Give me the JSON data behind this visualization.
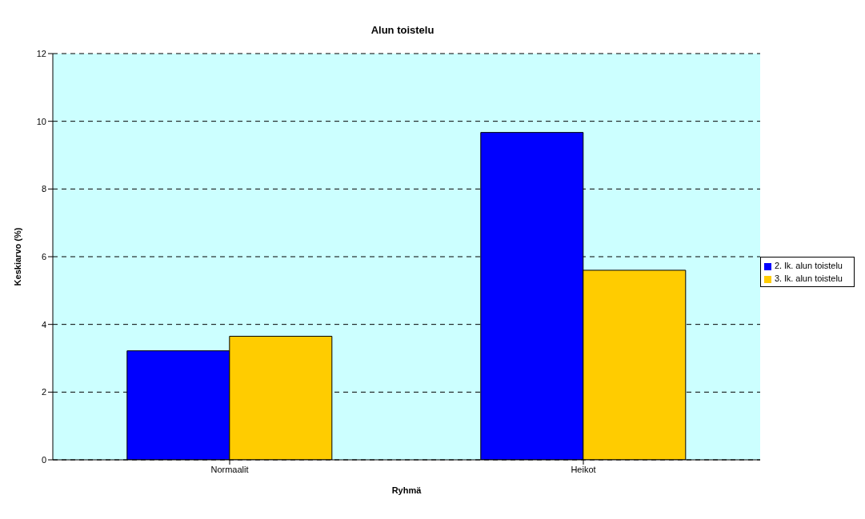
{
  "chart_data": {
    "type": "bar",
    "title": "Alun toistelu",
    "xlabel": "Ryhmä",
    "ylabel": "Keskiarvo (%)",
    "categories": [
      "Normaalit",
      "Heikot"
    ],
    "series": [
      {
        "name": "2. lk. alun toistelu",
        "color": "#0000ff",
        "values": [
          3.22,
          9.67
        ]
      },
      {
        "name": "3. lk. alun toistelu",
        "color": "#ffcc00",
        "values": [
          3.65,
          5.6
        ]
      }
    ],
    "ylim": [
      0,
      12
    ],
    "yticks": [
      0,
      2,
      4,
      6,
      8,
      10,
      12
    ],
    "grid": "y",
    "legend": "right"
  }
}
